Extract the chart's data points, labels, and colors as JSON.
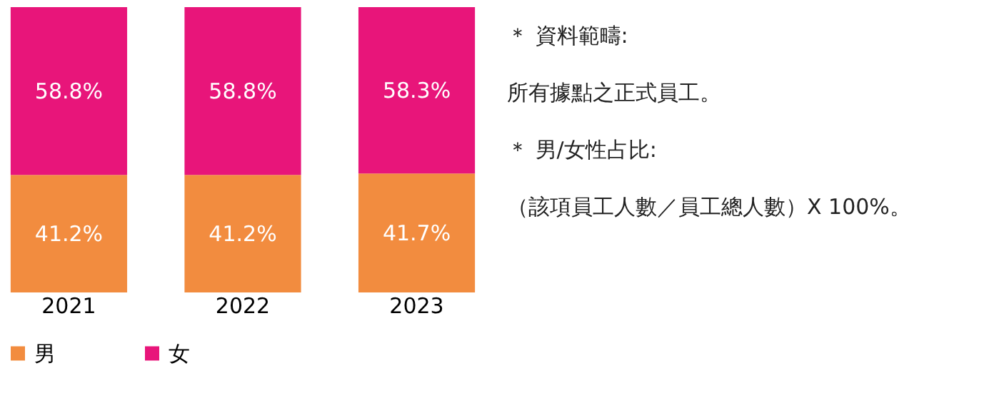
{
  "chart_data": {
    "type": "bar",
    "stacked": true,
    "categories": [
      "2021",
      "2022",
      "2023"
    ],
    "series": [
      {
        "name": "男",
        "color": "#f28c3f",
        "values": [
          41.2,
          41.2,
          41.7
        ],
        "value_labels": [
          "41.2%",
          "41.2%",
          "41.7%"
        ]
      },
      {
        "name": "女",
        "color": "#e8157a",
        "values": [
          58.8,
          58.8,
          58.3
        ],
        "value_labels": [
          "58.8%",
          "58.8%",
          "58.3%"
        ]
      }
    ],
    "legend": "bottom",
    "grid": false,
    "annotations": [
      "＊ 資料範疇:",
      "所有據點之正式員工。",
      "＊ 男/女性占比:",
      "（該項員工人數／員工總人數）X 100%。"
    ]
  }
}
